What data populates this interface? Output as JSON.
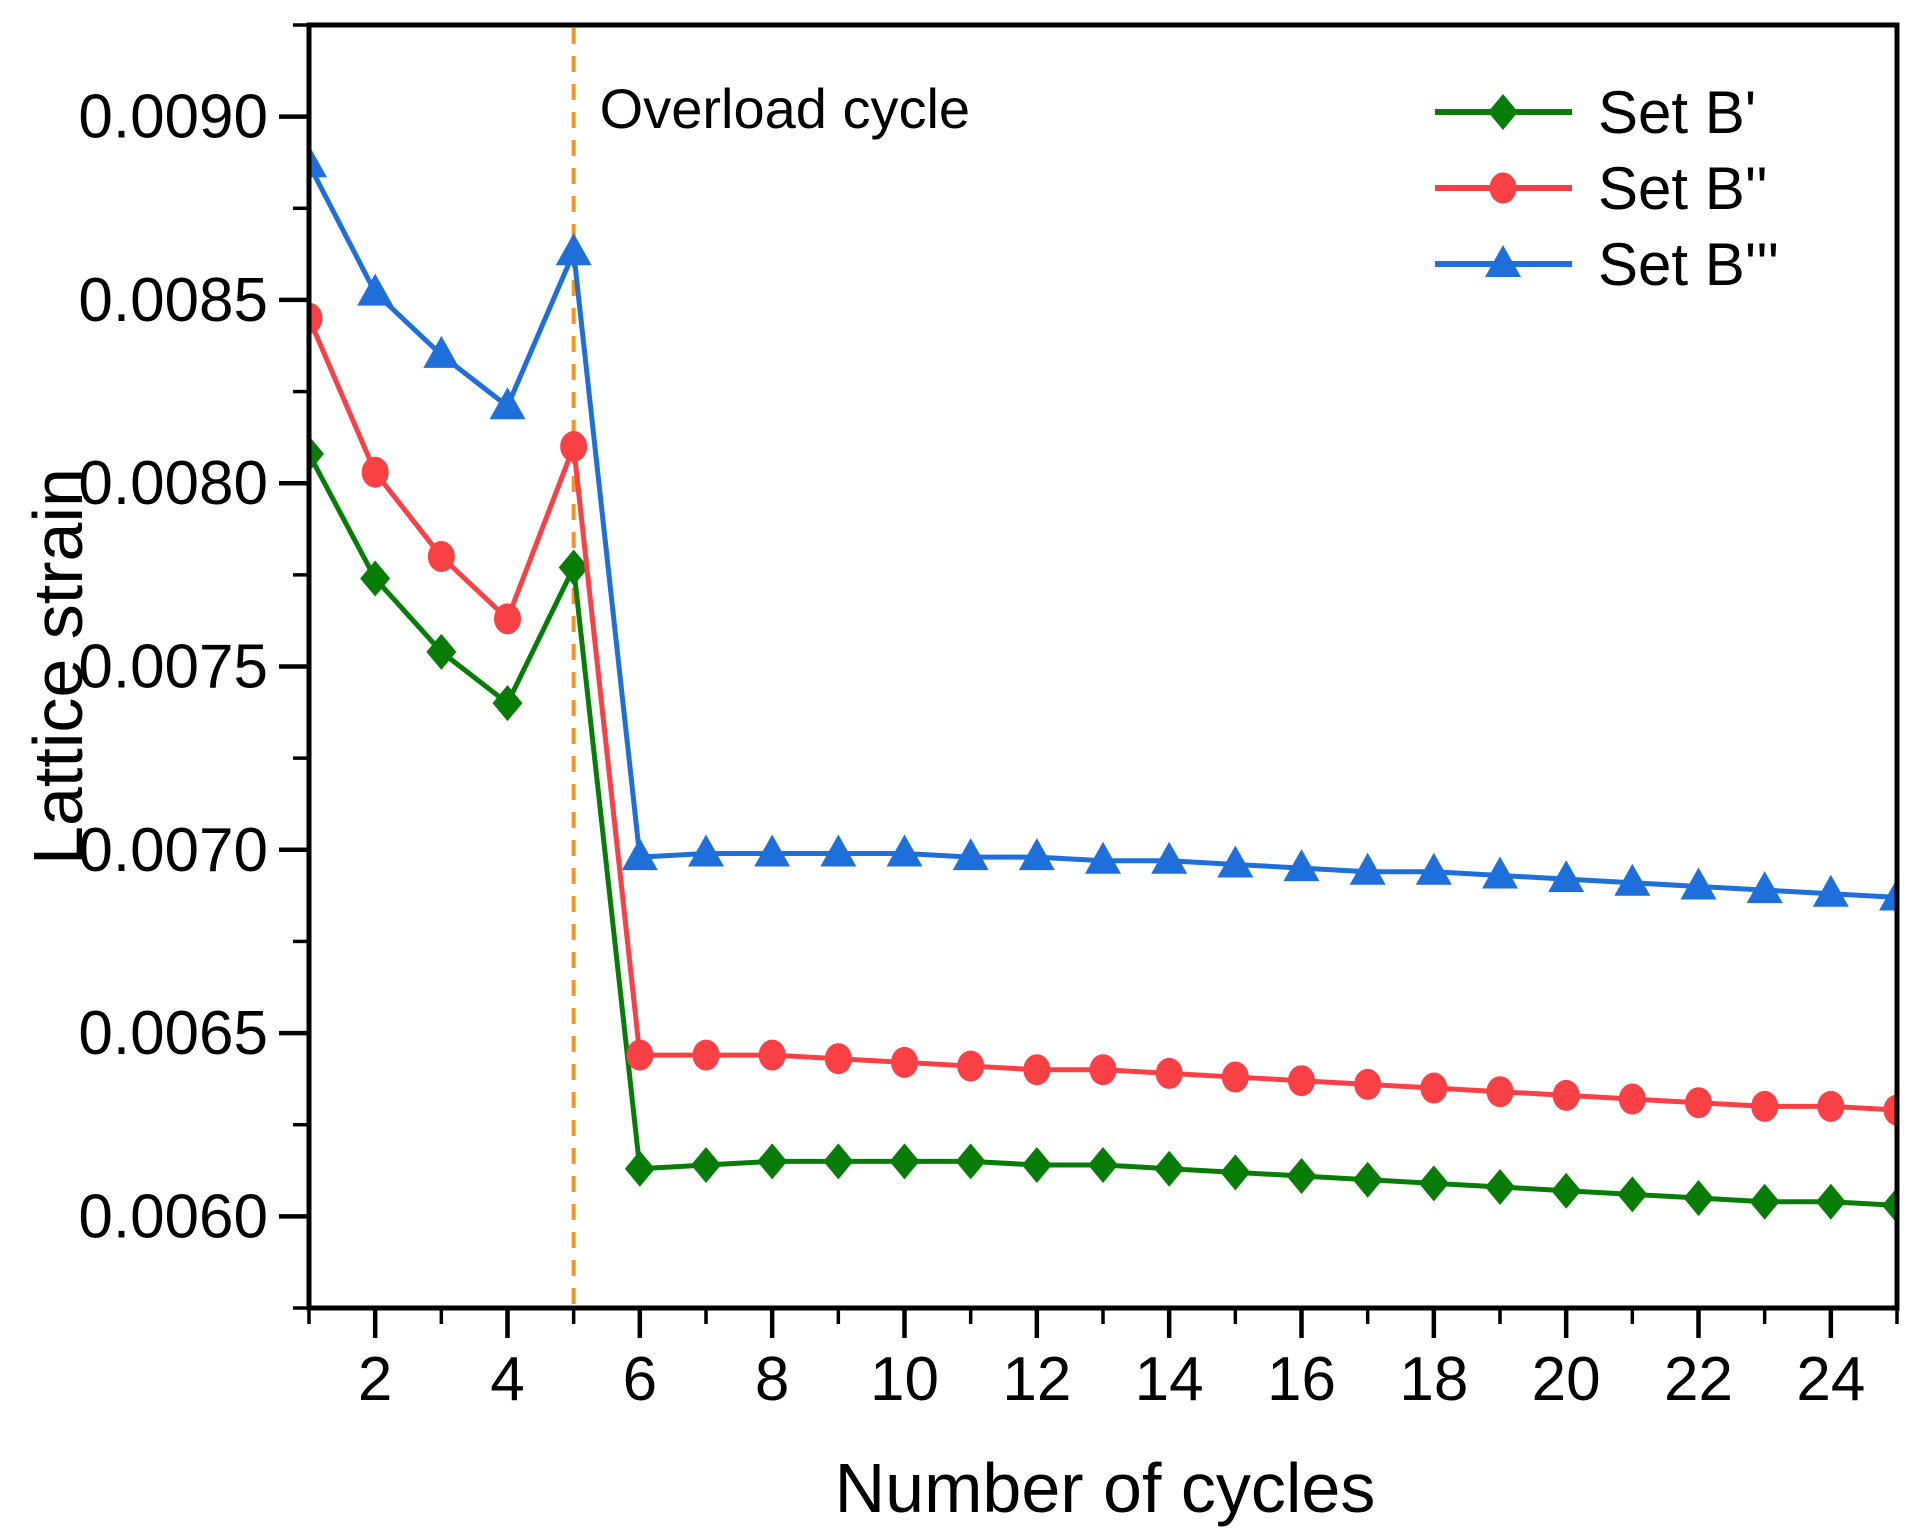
{
  "figure": {
    "background_color": "#ffffff",
    "frame_color": "#000000"
  },
  "chart_data": {
    "type": "line",
    "title": "",
    "xlabel": "Number of cycles",
    "ylabel": "Lattice strain",
    "xlim": [
      1,
      25
    ],
    "ylim": [
      0.00575,
      0.00925
    ],
    "grid": false,
    "x": [
      1,
      2,
      3,
      4,
      5,
      6,
      7,
      8,
      9,
      10,
      11,
      12,
      13,
      14,
      15,
      16,
      17,
      18,
      19,
      20,
      21,
      22,
      23,
      24,
      25
    ],
    "series": [
      {
        "name": "Set B'",
        "color": "#077D07",
        "marker": "diamond",
        "values": [
          0.00808,
          0.00774,
          0.00754,
          0.0074,
          0.00777,
          0.00613,
          0.00614,
          0.00615,
          0.00615,
          0.00615,
          0.00615,
          0.00614,
          0.00614,
          0.00613,
          0.00612,
          0.00611,
          0.0061,
          0.00609,
          0.00608,
          0.00607,
          0.00606,
          0.00605,
          0.00604,
          0.00604,
          0.00603
        ]
      },
      {
        "name": "Set B''",
        "color": "#F94045",
        "marker": "circle",
        "values": [
          0.00845,
          0.00803,
          0.0078,
          0.00763,
          0.0081,
          0.00644,
          0.00644,
          0.00644,
          0.00643,
          0.00642,
          0.00641,
          0.0064,
          0.0064,
          0.00639,
          0.00638,
          0.00637,
          0.00636,
          0.00635,
          0.00634,
          0.00633,
          0.00632,
          0.00631,
          0.0063,
          0.0063,
          0.00629
        ]
      },
      {
        "name": "Set B'''",
        "color": "#1E6FD9",
        "marker": "triangle",
        "values": [
          0.00887,
          0.00852,
          0.00835,
          0.00821,
          0.00863,
          0.00698,
          0.00699,
          0.00699,
          0.00699,
          0.00699,
          0.00698,
          0.00698,
          0.00697,
          0.00697,
          0.00696,
          0.00695,
          0.00694,
          0.00694,
          0.00693,
          0.00692,
          0.00691,
          0.0069,
          0.00689,
          0.00688,
          0.00687
        ]
      }
    ],
    "x_major_ticks": [
      2,
      4,
      6,
      8,
      10,
      12,
      14,
      16,
      18,
      20,
      22,
      24
    ],
    "x_tick_labels": [
      "2",
      "4",
      "6",
      "8",
      "10",
      "12",
      "14",
      "16",
      "18",
      "20",
      "22",
      "24"
    ],
    "x_minor_ticks": [
      1,
      3,
      5,
      7,
      9,
      11,
      13,
      15,
      17,
      19,
      21,
      23,
      25
    ],
    "y_major_ticks": [
      0.006,
      0.0065,
      0.007,
      0.0075,
      0.008,
      0.0085,
      0.009
    ],
    "y_tick_labels": [
      "0.0060",
      "0.0065",
      "0.0070",
      "0.0075",
      "0.0080",
      "0.0085",
      "0.0090"
    ],
    "y_minor_ticks": [
      0.00575,
      0.00625,
      0.00675,
      0.00725,
      0.00775,
      0.00825,
      0.00875,
      0.00925
    ],
    "legend": {
      "position": "top-right",
      "items": [
        "Set B'",
        "Set B''",
        "Set B'''"
      ]
    },
    "vline": {
      "axis_x": 5,
      "color": "#F8941E",
      "style": "dashed"
    },
    "annotations": [
      {
        "text": "Overload cycle",
        "axis_x": 5
      }
    ]
  }
}
